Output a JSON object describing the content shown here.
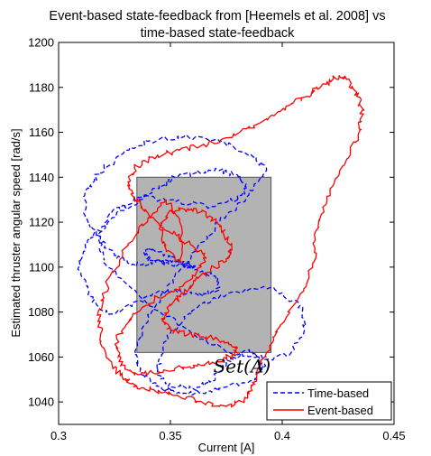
{
  "chart_data": {
    "type": "line",
    "title_lines": [
      "Event-based state-feedback from [Heemels et al. 2008] vs",
      "time-based state-feedback"
    ],
    "xlabel": "Current [A]",
    "ylabel": "Estimated thruster angular speed [rad/s]",
    "xlim": [
      0.3,
      0.45
    ],
    "ylim": [
      1030,
      1200
    ],
    "xticks": [
      0.3,
      0.35,
      0.4,
      0.45
    ],
    "xtick_labels": [
      "0.3",
      "0.35",
      "0.4",
      "0.45"
    ],
    "yticks": [
      1040,
      1060,
      1080,
      1100,
      1120,
      1140,
      1160,
      1180,
      1200
    ],
    "ytick_labels": [
      "1040",
      "1060",
      "1080",
      "1100",
      "1120",
      "1140",
      "1160",
      "1180",
      "1200"
    ],
    "grid": false,
    "legend_position": "bottom-right",
    "region": {
      "label": "Set(A)",
      "x_range": [
        0.335,
        0.395
      ],
      "y_range": [
        1062,
        1140
      ],
      "color": "#b3b3b3"
    },
    "series": [
      {
        "name": "Time-based",
        "style": "dashed",
        "color": "#0000ff",
        "x": [
          0.361,
          0.352,
          0.341,
          0.338,
          0.342,
          0.352,
          0.362,
          0.37,
          0.372,
          0.365,
          0.352,
          0.342,
          0.332,
          0.322,
          0.314,
          0.309,
          0.313,
          0.324,
          0.336,
          0.346,
          0.352,
          0.362,
          0.372,
          0.38,
          0.384,
          0.38,
          0.368,
          0.352,
          0.336,
          0.324,
          0.318,
          0.32,
          0.333,
          0.348,
          0.364,
          0.38,
          0.394,
          0.404,
          0.41,
          0.408,
          0.395,
          0.378,
          0.363,
          0.351,
          0.346,
          0.344,
          0.35,
          0.36,
          0.368,
          0.373,
          0.378,
          0.386,
          0.392,
          0.388,
          0.376,
          0.364,
          0.354,
          0.346,
          0.338,
          0.334,
          0.337,
          0.344,
          0.352,
          0.362,
          0.372,
          0.385,
          0.393,
          0.386,
          0.372,
          0.356,
          0.34,
          0.328,
          0.318,
          0.312,
          0.312,
          0.318,
          0.326,
          0.334,
          0.342,
          0.35,
          0.358,
          0.361
        ],
        "y": [
          1100,
          1101,
          1103,
          1106,
          1108,
          1104,
          1099,
          1096,
          1091,
          1087,
          1090,
          1088,
          1083,
          1079,
          1087,
          1100,
          1112,
          1122,
          1130,
          1136,
          1140,
          1142,
          1143,
          1141,
          1136,
          1130,
          1127,
          1129,
          1131,
          1125,
          1114,
          1102,
          1090,
          1078,
          1068,
          1061,
          1059,
          1062,
          1072,
          1083,
          1091,
          1089,
          1083,
          1072,
          1061,
          1052,
          1047,
          1046,
          1049,
          1054,
          1060,
          1063,
          1057,
          1050,
          1047,
          1044,
          1044,
          1046,
          1052,
          1061,
          1072,
          1084,
          1096,
          1108,
          1120,
          1132,
          1143,
          1150,
          1156,
          1158,
          1156,
          1150,
          1142,
          1134,
          1122,
          1112,
          1104,
          1101,
          1102,
          1103,
          1101,
          1100
        ]
      },
      {
        "name": "Event-based",
        "style": "solid",
        "color": "#ff0000",
        "x": [
          0.355,
          0.348,
          0.345,
          0.349,
          0.358,
          0.366,
          0.372,
          0.377,
          0.376,
          0.368,
          0.361,
          0.356,
          0.35,
          0.346,
          0.35,
          0.358,
          0.366,
          0.374,
          0.38,
          0.378,
          0.371,
          0.362,
          0.352,
          0.342,
          0.334,
          0.327,
          0.326,
          0.333,
          0.343,
          0.353,
          0.361,
          0.366,
          0.359,
          0.349,
          0.34,
          0.334,
          0.331,
          0.334,
          0.342,
          0.354,
          0.367,
          0.381,
          0.393,
          0.403,
          0.411,
          0.417,
          0.423,
          0.428,
          0.432,
          0.436,
          0.434,
          0.427,
          0.42,
          0.415,
          0.414,
          0.408,
          0.399,
          0.393,
          0.389,
          0.386,
          0.383,
          0.375,
          0.364,
          0.353,
          0.343,
          0.335,
          0.329,
          0.324,
          0.319,
          0.318,
          0.323,
          0.331,
          0.34,
          0.348,
          0.355,
          0.355
        ],
        "y": [
          1102,
          1108,
          1117,
          1124,
          1126,
          1124,
          1118,
          1110,
          1104,
          1099,
          1094,
          1088,
          1083,
          1077,
          1072,
          1070,
          1069,
          1067,
          1064,
          1061,
          1058,
          1056,
          1055,
          1053,
          1052,
          1058,
          1068,
          1078,
          1086,
          1090,
          1096,
          1104,
          1110,
          1116,
          1124,
          1131,
          1138,
          1144,
          1149,
          1152,
          1155,
          1160,
          1166,
          1172,
          1176,
          1180,
          1184,
          1185,
          1179,
          1170,
          1159,
          1145,
          1130,
          1116,
          1102,
          1088,
          1074,
          1062,
          1053,
          1046,
          1041,
          1038,
          1040,
          1043,
          1045,
          1047,
          1050,
          1056,
          1067,
          1081,
          1096,
          1110,
          1122,
          1130,
          1118,
          1102
        ]
      }
    ]
  }
}
